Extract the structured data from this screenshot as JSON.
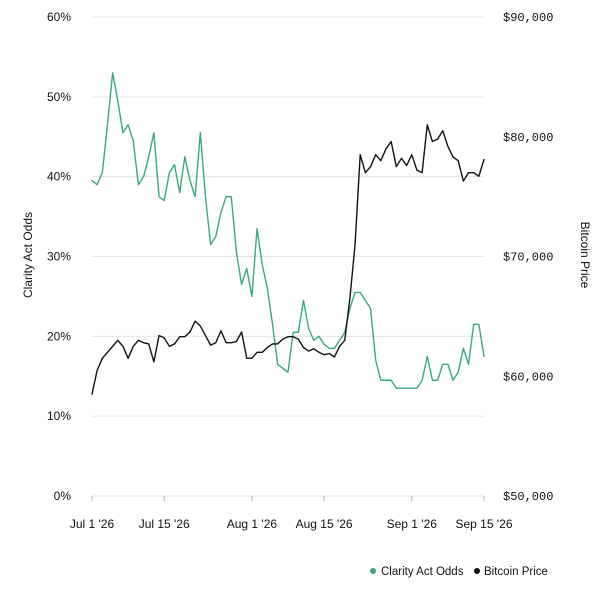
{
  "chart_data": {
    "type": "line",
    "y_left_label": "Clarity Act Odds",
    "y_right_label": "Bitcoin Price",
    "y_left_ticks": [
      "0%",
      "10%",
      "20%",
      "30%",
      "40%",
      "50%",
      "60%"
    ],
    "y_left_range": [
      0,
      60
    ],
    "y_right_ticks": [
      "$50,000",
      "$60,000",
      "$70,000",
      "$80,000",
      "$90,000"
    ],
    "y_right_range": [
      50000,
      90000
    ],
    "x_ticks": [
      "Jul 1 '26",
      "Jul 15 '26",
      "Aug 1 '26",
      "Aug 15 '26",
      "Sep 1 '26",
      "Sep 15 '26"
    ],
    "x_tick_days": [
      0,
      14,
      31,
      45,
      62,
      76
    ],
    "x_range": [
      0,
      76
    ],
    "grid": true,
    "legend_position": "bottom-right",
    "series": [
      {
        "name": "Clarity Act Odds",
        "axis": "left",
        "color": "#3aaa7a",
        "x": [
          0,
          1,
          2,
          3,
          4,
          5,
          6,
          7,
          8,
          9,
          10,
          11,
          12,
          13,
          14,
          15,
          16,
          17,
          18,
          19,
          20,
          21,
          22,
          23,
          24,
          25,
          26,
          27,
          28,
          29,
          30,
          31,
          32,
          33,
          34,
          35,
          36,
          37,
          38,
          39,
          40,
          41,
          42,
          43,
          44,
          45,
          46,
          47,
          48,
          49,
          50,
          51,
          52,
          53,
          54,
          55,
          56,
          57,
          58,
          59,
          60,
          61,
          62,
          63,
          64,
          65,
          66,
          67,
          68,
          69,
          70,
          71,
          72,
          73,
          74,
          75,
          76
        ],
        "values": [
          39.5,
          39,
          40.5,
          46.5,
          53,
          49.5,
          45.5,
          46.5,
          44.5,
          39,
          40,
          42.5,
          45.5,
          37.5,
          37,
          40.5,
          41.5,
          38,
          42.5,
          39.5,
          37.5,
          45.5,
          37.5,
          31.5,
          32.5,
          35.5,
          37.5,
          37.5,
          30.5,
          26.5,
          28.5,
          25,
          33.5,
          29,
          26,
          21.5,
          16.5,
          16,
          15.5,
          20.5,
          20.5,
          24.5,
          21,
          19.5,
          20,
          19,
          18.5,
          18.5,
          19.5,
          20.5,
          23.5,
          25.5,
          25.5,
          24.5,
          23.5,
          17,
          14.5,
          14.5,
          14.5,
          13.5,
          13.5,
          13.5,
          13.5,
          13.5,
          14.5,
          17.5,
          14.5,
          14.5,
          16.5,
          16.5,
          14.5,
          15.5,
          18.5,
          16.5,
          21.5,
          21.5,
          17.5
        ]
      },
      {
        "name": "Bitcoin Price",
        "axis": "right",
        "color": "#111111",
        "x": [
          0,
          1,
          2,
          3,
          4,
          5,
          6,
          7,
          8,
          9,
          10,
          11,
          12,
          13,
          14,
          15,
          16,
          17,
          18,
          19,
          20,
          21,
          22,
          23,
          24,
          25,
          26,
          27,
          28,
          29,
          30,
          31,
          32,
          33,
          34,
          35,
          36,
          37,
          38,
          39,
          40,
          41,
          42,
          43,
          44,
          45,
          46,
          47,
          48,
          49,
          50,
          51,
          52,
          53,
          54,
          55,
          56,
          57,
          58,
          59,
          60,
          61,
          62,
          63,
          64,
          65,
          66,
          67,
          68,
          69,
          70,
          71,
          72,
          73,
          74,
          75,
          76
        ],
        "values": [
          58500,
          60500,
          61500,
          62000,
          62500,
          63000,
          62500,
          61500,
          62500,
          63000,
          62800,
          62700,
          61200,
          63400,
          63200,
          62500,
          62700,
          63300,
          63300,
          63700,
          64600,
          64200,
          63400,
          62600,
          62800,
          63800,
          62800,
          62800,
          62900,
          63700,
          61500,
          61500,
          62000,
          62000,
          62400,
          62700,
          62700,
          63100,
          63300,
          63300,
          63100,
          62400,
          62100,
          62300,
          62000,
          61800,
          61900,
          61600,
          62500,
          63000,
          66500,
          71000,
          78500,
          77000,
          77500,
          78500,
          78000,
          79000,
          79600,
          77500,
          78200,
          77600,
          78500,
          77200,
          77000,
          81000,
          79600,
          79800,
          80500,
          79200,
          78300,
          78000,
          76300,
          77000,
          77000,
          76700,
          78100
        ]
      }
    ]
  },
  "legend": {
    "items": [
      {
        "label": "Clarity Act Odds",
        "color": "#3aaa7a"
      },
      {
        "label": "Bitcoin Price",
        "color": "#111111"
      }
    ]
  }
}
